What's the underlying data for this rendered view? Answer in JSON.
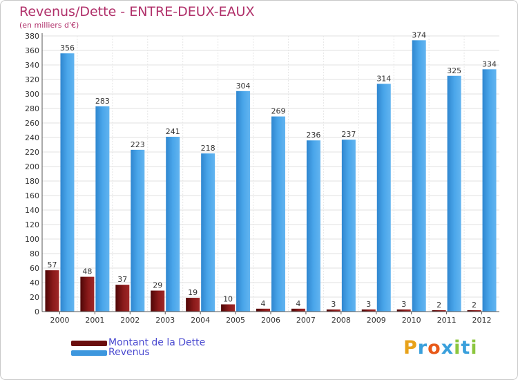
{
  "header": {
    "title": "Revenus/Dette - ENTRE-DEUX-EAUX",
    "subtitle": "(en milliers d'€)"
  },
  "chart_data": {
    "type": "bar",
    "title": "Revenus/Dette - ENTRE-DEUX-EAUX",
    "ylabel": "(en milliers d'€)",
    "xlabel": "",
    "ylim": [
      0,
      380
    ],
    "ytick_step": 20,
    "grid": true,
    "categories": [
      "2000",
      "2001",
      "2002",
      "2003",
      "2004",
      "2005",
      "2006",
      "2007",
      "2008",
      "2009",
      "2010",
      "2011",
      "2012"
    ],
    "series": [
      {
        "name": "Montant de la Dette",
        "color": "#7a1414",
        "values": [
          57,
          48,
          37,
          29,
          19,
          10,
          4,
          4,
          3,
          3,
          3,
          2,
          2
        ]
      },
      {
        "name": "Revenus",
        "color": "#3d97de",
        "values": [
          356,
          283,
          223,
          241,
          218,
          304,
          269,
          236,
          237,
          314,
          374,
          325,
          334
        ]
      }
    ]
  },
  "legend": {
    "placement": "bottom-left",
    "items": [
      {
        "label": "Montant de la Dette",
        "color": "#6a0e0e"
      },
      {
        "label": "Revenus",
        "color": "#3d97de"
      }
    ]
  },
  "logo": {
    "letters": [
      "P",
      "r",
      "o",
      "x",
      "i",
      "t",
      "i"
    ],
    "colors": [
      "#e8a21a",
      "#3aa0dc",
      "#e85a1a",
      "#3aa0dc",
      "#8cc63e",
      "#3aa0dc",
      "#8cc63e"
    ]
  }
}
